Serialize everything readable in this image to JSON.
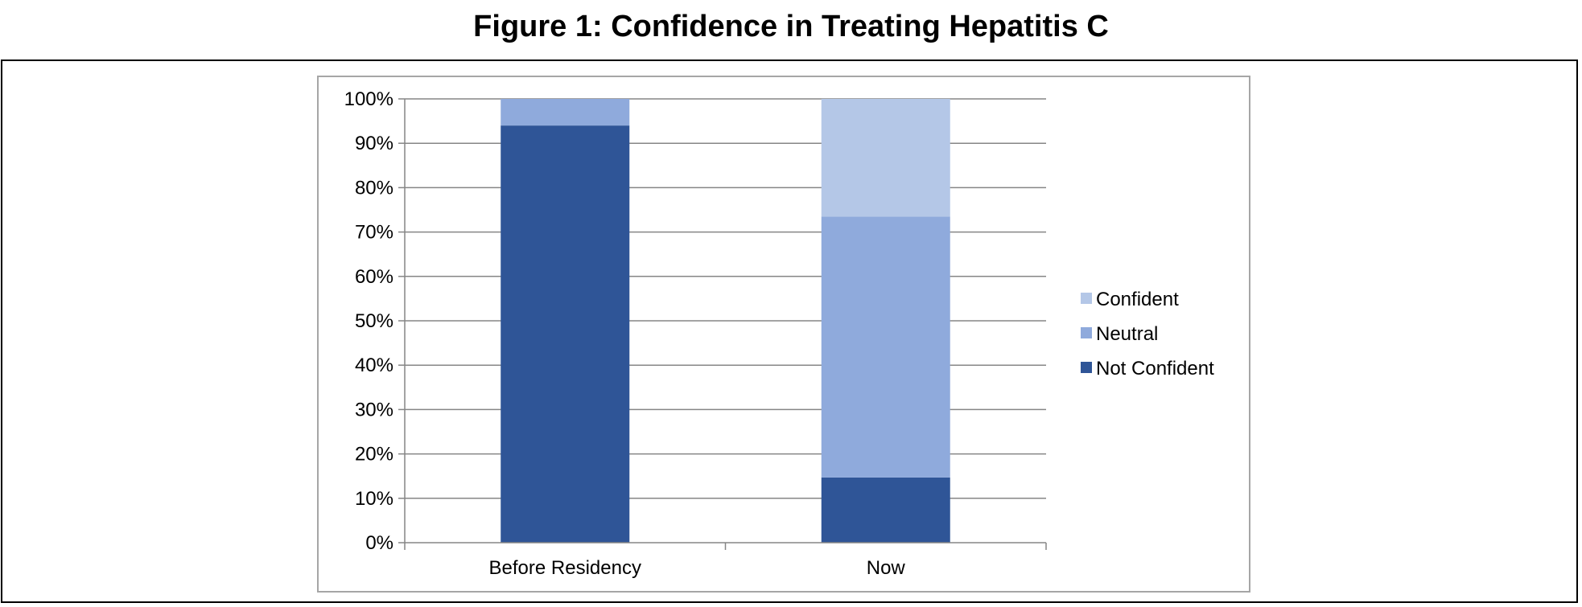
{
  "chart_data": {
    "type": "bar",
    "stacked": true,
    "title": "Figure 1: Confidence in Treating Hepatitis C",
    "categories": [
      "Before Residency",
      "Now"
    ],
    "series": [
      {
        "name": "Not Confident",
        "values": [
          94,
          14.7
        ],
        "color": "#2f5597"
      },
      {
        "name": "Neutral",
        "values": [
          6,
          58.8
        ],
        "color": "#8faadc"
      },
      {
        "name": "Confident",
        "values": [
          0,
          26.5
        ],
        "color": "#b4c7e7"
      }
    ],
    "ylim": [
      0,
      100
    ],
    "yticks": [
      "0%",
      "10%",
      "20%",
      "30%",
      "40%",
      "50%",
      "60%",
      "70%",
      "80%",
      "90%",
      "100%"
    ],
    "grid": true,
    "legend_placement": "right",
    "xlabel": "",
    "ylabel": ""
  }
}
